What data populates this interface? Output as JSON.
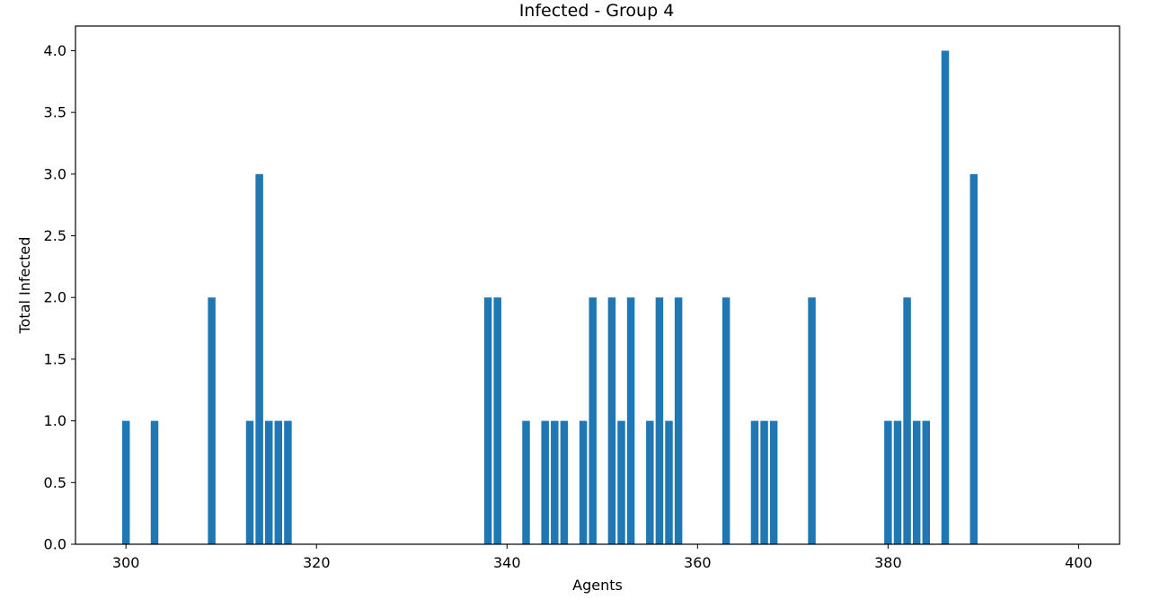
{
  "chart_data": {
    "type": "bar",
    "title": "Infected - Group 4",
    "xlabel": "Agents",
    "ylabel": "Total Infected",
    "xlim": [
      294.7,
      404.3
    ],
    "ylim": [
      0,
      4.2
    ],
    "xticks": [
      300,
      320,
      340,
      360,
      380,
      400
    ],
    "yticks": [
      0.0,
      0.5,
      1.0,
      1.5,
      2.0,
      2.5,
      3.0,
      3.5,
      4.0
    ],
    "ytick_labels": [
      "0.0",
      "0.5",
      "1.0",
      "1.5",
      "2.0",
      "2.5",
      "3.0",
      "3.5",
      "4.0"
    ],
    "bar_color": "#1f77b4",
    "grid": false,
    "x": [
      300,
      303,
      309,
      313,
      314,
      315,
      316,
      317,
      338,
      339,
      342,
      344,
      345,
      346,
      348,
      349,
      351,
      352,
      353,
      355,
      356,
      357,
      358,
      363,
      366,
      367,
      368,
      372,
      380,
      381,
      382,
      383,
      384,
      386,
      389
    ],
    "values": [
      1,
      1,
      2,
      1,
      3,
      1,
      1,
      1,
      2,
      2,
      1,
      1,
      1,
      1,
      1,
      2,
      2,
      1,
      2,
      1,
      2,
      1,
      2,
      2,
      1,
      1,
      1,
      2,
      1,
      1,
      2,
      1,
      1,
      4,
      3
    ]
  }
}
